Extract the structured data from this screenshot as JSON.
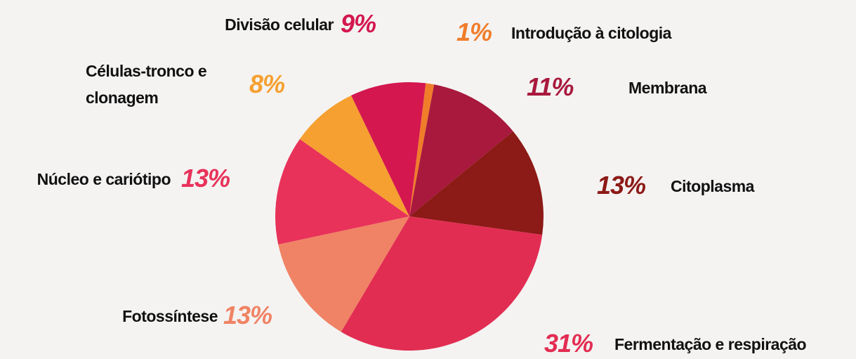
{
  "chart_data": {
    "type": "pie",
    "categories": [
      "Introdução à citologia",
      "Membrana",
      "Citoplasma",
      "Fermentação e respiração",
      "Fotossíntese",
      "Núcleo e cariótipo",
      "Células-tronco e clonagem",
      "Divisão celular"
    ],
    "values": [
      1,
      11,
      13,
      31,
      13,
      13,
      8,
      9
    ],
    "value_labels": [
      "1%",
      "11%",
      "13%",
      "31%",
      "13%",
      "13%",
      "8%",
      "9%"
    ],
    "colors": [
      "#f07d2a",
      "#a8193d",
      "#8c1a16",
      "#e22d52",
      "#f08365",
      "#e8325a",
      "#f5a030",
      "#d4174f"
    ]
  }
}
